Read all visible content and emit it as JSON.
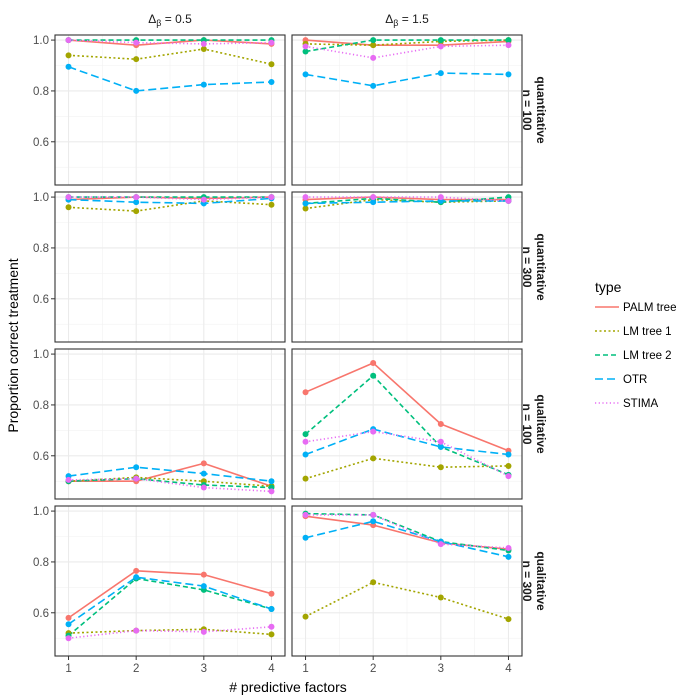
{
  "chart_data": {
    "type": "line",
    "x_title": "# predictive factors",
    "y_title": "Proportion correct treatment",
    "x": [
      1,
      2,
      3,
      4
    ],
    "x_ticks": [
      "1",
      "2",
      "3",
      "4"
    ],
    "y_ticks": [
      "0.6",
      "0.8",
      "1.0"
    ],
    "y_tick_values": [
      0.6,
      0.8,
      1.0
    ],
    "xlim": [
      0.8,
      4.2
    ],
    "ylim": [
      0.43,
      1.02
    ],
    "column_strips": [
      {
        "base": "Δ",
        "sub": "β",
        "rest": " = 0.5"
      },
      {
        "base": "Δ",
        "sub": "β",
        "rest": " = 1.5"
      }
    ],
    "row_strips": [
      {
        "top": "quantitative",
        "bottom": "n = 100"
      },
      {
        "top": "quantitative",
        "bottom": "n = 300"
      },
      {
        "top": "qualitative",
        "bottom": "n = 100"
      },
      {
        "top": "qualitative",
        "bottom": "n = 300"
      }
    ],
    "legend": {
      "title": "type",
      "entries": [
        {
          "name": "PALM tree",
          "color": "#F8766D",
          "dash": "solid"
        },
        {
          "name": "LM tree 1",
          "color": "#A3A500",
          "dash": "dotted"
        },
        {
          "name": "LM tree 2",
          "color": "#00BF7D",
          "dash": "dashed"
        },
        {
          "name": "OTR",
          "color": "#00B0F6",
          "dash": "longdash"
        },
        {
          "name": "STIMA",
          "color": "#E76BF3",
          "dash": "dotted-fine"
        }
      ]
    },
    "panels": [
      {
        "row": 0,
        "col": 0,
        "series": [
          {
            "name": "PALM tree",
            "values": [
              1.0,
              0.98,
              1.0,
              0.985
            ]
          },
          {
            "name": "LM tree 1",
            "values": [
              0.94,
              0.925,
              0.965,
              0.905
            ]
          },
          {
            "name": "LM tree 2",
            "values": [
              1.0,
              1.0,
              1.0,
              1.0
            ]
          },
          {
            "name": "OTR",
            "values": [
              0.895,
              0.8,
              0.825,
              0.835
            ]
          },
          {
            "name": "STIMA",
            "values": [
              1.0,
              0.99,
              0.985,
              0.99
            ]
          }
        ]
      },
      {
        "row": 0,
        "col": 1,
        "series": [
          {
            "name": "PALM tree",
            "values": [
              1.0,
              0.98,
              0.98,
              0.995
            ]
          },
          {
            "name": "LM tree 1",
            "values": [
              0.985,
              0.98,
              0.995,
              1.0
            ]
          },
          {
            "name": "LM tree 2",
            "values": [
              0.955,
              1.0,
              1.0,
              1.0
            ]
          },
          {
            "name": "OTR",
            "values": [
              0.865,
              0.82,
              0.87,
              0.865
            ]
          },
          {
            "name": "STIMA",
            "values": [
              0.975,
              0.93,
              0.975,
              0.98
            ]
          }
        ]
      },
      {
        "row": 1,
        "col": 0,
        "series": [
          {
            "name": "PALM tree",
            "values": [
              0.99,
              1.0,
              0.995,
              1.0
            ]
          },
          {
            "name": "LM tree 1",
            "values": [
              0.96,
              0.945,
              0.985,
              0.97
            ]
          },
          {
            "name": "LM tree 2",
            "values": [
              1.0,
              1.0,
              1.0,
              1.0
            ]
          },
          {
            "name": "OTR",
            "values": [
              0.99,
              0.98,
              0.975,
              0.995
            ]
          },
          {
            "name": "STIMA",
            "values": [
              1.0,
              1.0,
              0.99,
              1.0
            ]
          }
        ]
      },
      {
        "row": 1,
        "col": 1,
        "series": [
          {
            "name": "PALM tree",
            "values": [
              0.99,
              1.0,
              0.99,
              0.99
            ]
          },
          {
            "name": "LM tree 1",
            "values": [
              0.955,
              0.99,
              0.98,
              0.985
            ]
          },
          {
            "name": "LM tree 2",
            "values": [
              0.975,
              0.995,
              0.98,
              1.0
            ]
          },
          {
            "name": "OTR",
            "values": [
              0.975,
              0.98,
              0.985,
              0.985
            ]
          },
          {
            "name": "STIMA",
            "values": [
              1.0,
              1.0,
              1.0,
              0.985
            ]
          }
        ]
      },
      {
        "row": 2,
        "col": 0,
        "series": [
          {
            "name": "PALM tree",
            "values": [
              0.5,
              0.5,
              0.57,
              0.48
            ]
          },
          {
            "name": "LM tree 1",
            "values": [
              0.5,
              0.515,
              0.5,
              0.48
            ]
          },
          {
            "name": "LM tree 2",
            "values": [
              0.5,
              0.51,
              0.485,
              0.475
            ]
          },
          {
            "name": "OTR",
            "values": [
              0.52,
              0.555,
              0.53,
              0.5
            ]
          },
          {
            "name": "STIMA",
            "values": [
              0.505,
              0.51,
              0.475,
              0.46
            ]
          }
        ]
      },
      {
        "row": 2,
        "col": 1,
        "series": [
          {
            "name": "PALM tree",
            "values": [
              0.85,
              0.965,
              0.725,
              0.62
            ]
          },
          {
            "name": "LM tree 1",
            "values": [
              0.51,
              0.59,
              0.555,
              0.56
            ]
          },
          {
            "name": "LM tree 2",
            "values": [
              0.685,
              0.915,
              0.635,
              0.525
            ]
          },
          {
            "name": "OTR",
            "values": [
              0.605,
              0.705,
              0.635,
              0.605
            ]
          },
          {
            "name": "STIMA",
            "values": [
              0.655,
              0.695,
              0.655,
              0.52
            ]
          }
        ]
      },
      {
        "row": 3,
        "col": 0,
        "series": [
          {
            "name": "PALM tree",
            "values": [
              0.58,
              0.765,
              0.75,
              0.675
            ]
          },
          {
            "name": "LM tree 1",
            "values": [
              0.52,
              0.53,
              0.535,
              0.515
            ]
          },
          {
            "name": "LM tree 2",
            "values": [
              0.51,
              0.735,
              0.69,
              0.615
            ]
          },
          {
            "name": "OTR",
            "values": [
              0.555,
              0.74,
              0.705,
              0.615
            ]
          },
          {
            "name": "STIMA",
            "values": [
              0.5,
              0.53,
              0.525,
              0.545
            ]
          }
        ]
      },
      {
        "row": 3,
        "col": 1,
        "series": [
          {
            "name": "PALM tree",
            "values": [
              0.98,
              0.945,
              0.875,
              0.85
            ]
          },
          {
            "name": "LM tree 1",
            "values": [
              0.585,
              0.72,
              0.66,
              0.575
            ]
          },
          {
            "name": "LM tree 2",
            "values": [
              0.99,
              0.985,
              0.88,
              0.845
            ]
          },
          {
            "name": "OTR",
            "values": [
              0.895,
              0.96,
              0.88,
              0.82
            ]
          },
          {
            "name": "STIMA",
            "values": [
              0.985,
              0.985,
              0.87,
              0.855
            ]
          }
        ]
      }
    ]
  }
}
